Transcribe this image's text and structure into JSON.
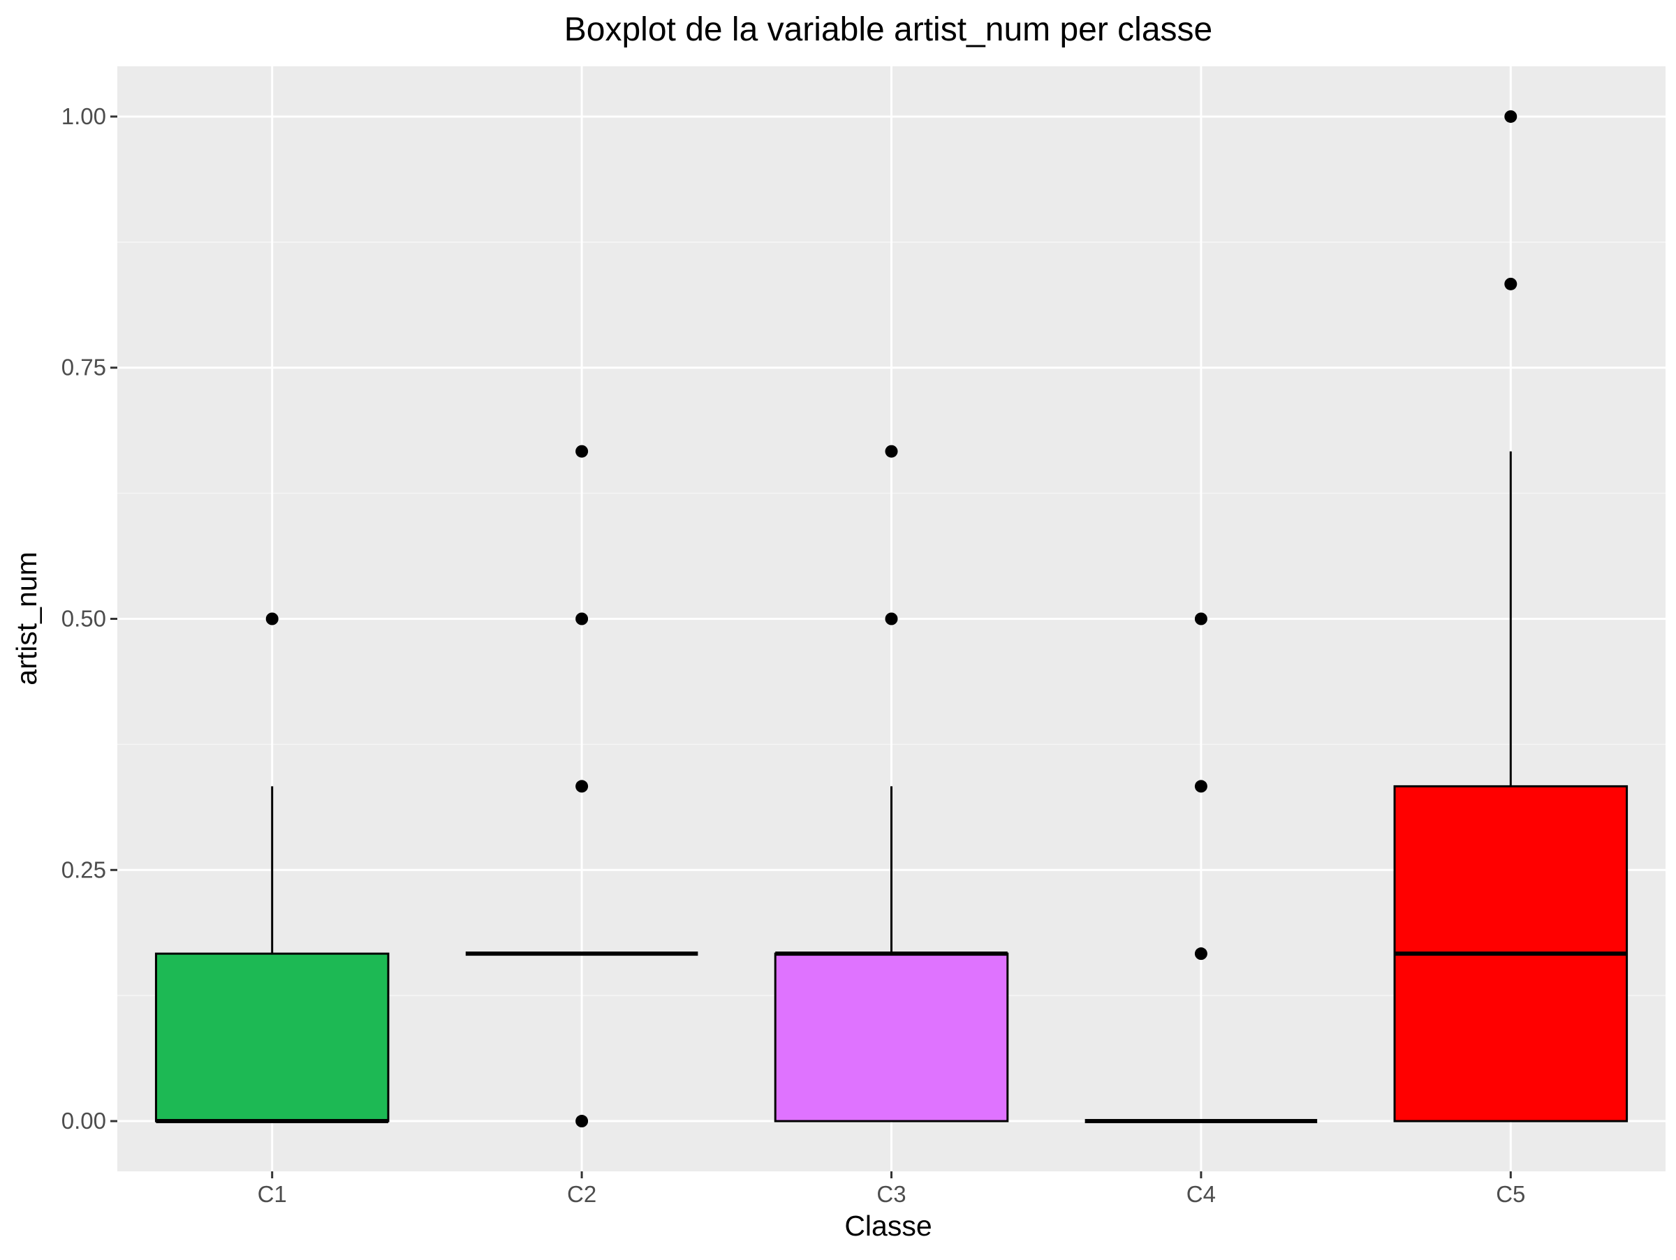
{
  "chart_data": {
    "type": "boxplot",
    "title": "Boxplot de la variable artist_num per classe",
    "xlabel": "Classe",
    "ylabel": "artist_num",
    "ylim": [
      -0.05,
      1.05
    ],
    "yticks": [
      0.0,
      0.25,
      0.5,
      0.75,
      1.0
    ],
    "ytick_labels": [
      "0.00",
      "0.25",
      "0.50",
      "0.75",
      "1.00"
    ],
    "categories": [
      "C1",
      "C2",
      "C3",
      "C4",
      "C5"
    ],
    "grid": true,
    "legend": "none",
    "boxes": [
      {
        "category": "C1",
        "lower_whisker": 0.0,
        "q1": 0.0,
        "median": 0.0,
        "q3": 0.1667,
        "upper_whisker": 0.3333,
        "outliers": [
          0.5
        ],
        "fill": "#1DB954"
      },
      {
        "category": "C2",
        "lower_whisker": 0.1667,
        "q1": 0.1667,
        "median": 0.1667,
        "q3": 0.1667,
        "upper_whisker": 0.1667,
        "outliers": [
          0.0,
          0.3333,
          0.5,
          0.6667
        ],
        "fill": "#7CAE00"
      },
      {
        "category": "C3",
        "lower_whisker": 0.0,
        "q1": 0.0,
        "median": 0.1667,
        "q3": 0.1667,
        "upper_whisker": 0.3333,
        "outliers": [
          0.5,
          0.6667
        ],
        "fill": "#DF73FF"
      },
      {
        "category": "C4",
        "lower_whisker": 0.0,
        "q1": 0.0,
        "median": 0.0,
        "q3": 0.0,
        "upper_whisker": 0.0,
        "outliers": [
          0.1667,
          0.3333,
          0.5
        ],
        "fill": "#00A9FF"
      },
      {
        "category": "C5",
        "lower_whisker": 0.0,
        "q1": 0.0,
        "median": 0.1667,
        "q3": 0.3333,
        "upper_whisker": 0.6667,
        "outliers": [
          0.8333,
          1.0
        ],
        "fill": "#FF0000"
      }
    ]
  },
  "style": {
    "panel_background": "#EBEBEB",
    "grid_major": "#FFFFFF",
    "grid_minor": "#F5F5F5",
    "box_stroke": "#000000",
    "tick_color": "#333333"
  }
}
